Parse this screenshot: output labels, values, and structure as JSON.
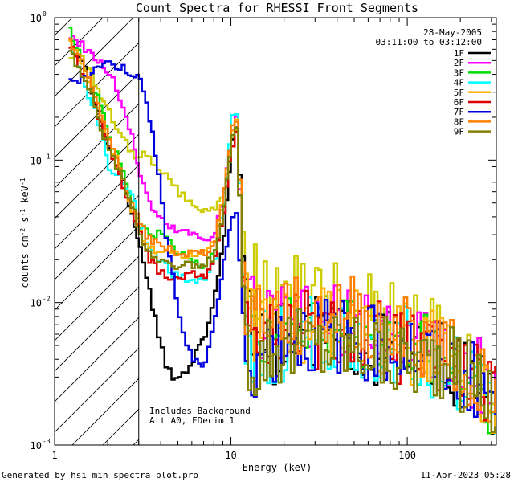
{
  "chart_data": {
    "type": "line",
    "title": "Count Spectra for RHESSI Front Segments",
    "xlabel": "Energy (keV)",
    "ylabel_parts": [
      "counts cm",
      "-2",
      " s",
      "-1",
      " keV",
      "-1"
    ],
    "x_scale": "log",
    "y_scale": "log",
    "xlim": [
      1,
      320
    ],
    "ylim": [
      0.001,
      1
    ],
    "x_ticks": [
      {
        "value": 1,
        "label": "1"
      },
      {
        "value": 10,
        "label": "10"
      },
      {
        "value": 100,
        "label": "100"
      }
    ],
    "y_ticks": [
      {
        "exp": 0,
        "label": "10",
        "sup": "0"
      },
      {
        "exp": -1,
        "label": "10",
        "sup": "-1"
      },
      {
        "exp": -2,
        "label": "10",
        "sup": "-2"
      },
      {
        "exp": -3,
        "label": "10",
        "sup": "-3"
      }
    ],
    "header_date": "28-May-2005",
    "header_time": "03:11:00 to 03:12:00",
    "annotation_lines": [
      "Includes Background",
      "Att A0, FDecim 1"
    ],
    "excluded_region_max_keV": 3,
    "series": [
      {
        "name": "1F",
        "color": "#000000",
        "x": [
          1.2,
          1.4,
          1.6,
          1.8,
          2.0,
          2.2,
          2.4,
          2.6,
          2.8,
          3.0,
          3.4,
          3.8,
          4.2,
          4.6,
          5.0,
          6.0,
          7.0,
          8.0,
          9.0,
          10.0,
          10.5,
          11.0,
          11.5,
          12.0,
          13,
          14,
          16,
          18,
          20,
          25,
          30,
          40,
          50,
          60,
          80,
          100,
          130,
          160,
          200,
          250,
          300
        ],
        "y": [
          0.7,
          0.5,
          0.3,
          0.18,
          0.12,
          0.09,
          0.07,
          0.05,
          0.035,
          0.025,
          0.012,
          0.006,
          0.0035,
          0.003,
          0.003,
          0.004,
          0.006,
          0.012,
          0.03,
          0.13,
          0.18,
          0.08,
          0.02,
          0.008,
          0.005,
          0.004,
          0.005,
          0.005,
          0.006,
          0.006,
          0.006,
          0.006,
          0.006,
          0.005,
          0.005,
          0.005,
          0.004,
          0.004,
          0.003,
          0.003,
          0.002
        ]
      },
      {
        "name": "2F",
        "color": "#ff00ff",
        "x": [
          1.2,
          1.4,
          1.6,
          1.8,
          2.0,
          2.2,
          2.4,
          2.6,
          2.8,
          3.0,
          3.4,
          3.8,
          4.2,
          4.6,
          5.0,
          6.0,
          7.0,
          8.0,
          9.0,
          10.0,
          10.5,
          11.0,
          11.5,
          12.0,
          13,
          14,
          16,
          18,
          20,
          25,
          30,
          40,
          50,
          60,
          80,
          100,
          130,
          160,
          200,
          250,
          300
        ],
        "y": [
          0.75,
          0.65,
          0.55,
          0.48,
          0.4,
          0.32,
          0.24,
          0.17,
          0.12,
          0.08,
          0.05,
          0.04,
          0.035,
          0.033,
          0.032,
          0.03,
          0.028,
          0.032,
          0.06,
          0.17,
          0.2,
          0.06,
          0.015,
          0.01,
          0.008,
          0.007,
          0.007,
          0.007,
          0.007,
          0.007,
          0.007,
          0.007,
          0.006,
          0.006,
          0.006,
          0.005,
          0.005,
          0.004,
          0.0035,
          0.003,
          0.002
        ]
      },
      {
        "name": "3F",
        "color": "#00dd00",
        "x": [
          1.2,
          1.4,
          1.6,
          1.8,
          2.0,
          2.2,
          2.4,
          2.6,
          2.8,
          3.0,
          3.4,
          3.8,
          4.2,
          4.6,
          5.0,
          6.0,
          7.0,
          8.0,
          9.0,
          10.0,
          10.5,
          11.0,
          11.5,
          12.0,
          13,
          14,
          16,
          18,
          20,
          25,
          30,
          40,
          50,
          60,
          80,
          100,
          130,
          160,
          200,
          250,
          300
        ],
        "y": [
          0.8,
          0.5,
          0.35,
          0.25,
          0.15,
          0.11,
          0.08,
          0.06,
          0.045,
          0.035,
          0.03,
          0.03,
          0.028,
          0.025,
          0.022,
          0.02,
          0.018,
          0.022,
          0.05,
          0.15,
          0.18,
          0.06,
          0.015,
          0.009,
          0.007,
          0.006,
          0.006,
          0.007,
          0.007,
          0.007,
          0.007,
          0.006,
          0.006,
          0.006,
          0.005,
          0.005,
          0.005,
          0.004,
          0.0035,
          0.003,
          0.002
        ]
      },
      {
        "name": "4F",
        "color": "#00ffff",
        "x": [
          1.2,
          1.4,
          1.6,
          1.8,
          2.0,
          2.2,
          2.4,
          2.6,
          2.8,
          3.0,
          3.4,
          3.8,
          4.2,
          4.6,
          5.0,
          6.0,
          7.0,
          8.0,
          9.0,
          10.0,
          10.5,
          11.0,
          11.5,
          12.0,
          13,
          14,
          16,
          18,
          20,
          25,
          30,
          40,
          50,
          60,
          80,
          100,
          130,
          160,
          200,
          250,
          300
        ],
        "y": [
          0.6,
          0.4,
          0.25,
          0.16,
          0.09,
          0.08,
          0.07,
          0.06,
          0.05,
          0.035,
          0.025,
          0.02,
          0.018,
          0.016,
          0.015,
          0.014,
          0.014,
          0.02,
          0.05,
          0.2,
          0.21,
          0.07,
          0.015,
          0.006,
          0.004,
          0.004,
          0.005,
          0.005,
          0.005,
          0.006,
          0.006,
          0.006,
          0.005,
          0.005,
          0.005,
          0.005,
          0.004,
          0.004,
          0.003,
          0.003,
          0.002
        ]
      },
      {
        "name": "5F",
        "color": "#ffb000",
        "x": [
          1.2,
          1.4,
          1.6,
          1.8,
          2.0,
          2.2,
          2.4,
          2.6,
          2.8,
          3.0,
          3.4,
          3.8,
          4.2,
          4.6,
          5.0,
          6.0,
          7.0,
          8.0,
          9.0,
          10.0,
          10.5,
          11.0,
          11.5,
          12.0,
          13,
          14,
          16,
          18,
          20,
          25,
          30,
          40,
          50,
          60,
          80,
          100,
          130,
          160,
          200,
          250,
          300
        ],
        "y": [
          0.7,
          0.45,
          0.3,
          0.2,
          0.13,
          0.1,
          0.07,
          0.05,
          0.04,
          0.03,
          0.025,
          0.022,
          0.022,
          0.022,
          0.022,
          0.022,
          0.022,
          0.028,
          0.06,
          0.15,
          0.18,
          0.07,
          0.02,
          0.01,
          0.008,
          0.007,
          0.007,
          0.007,
          0.007,
          0.007,
          0.007,
          0.007,
          0.007,
          0.006,
          0.006,
          0.005,
          0.005,
          0.004,
          0.0035,
          0.003,
          0.002
        ]
      },
      {
        "name": "6F",
        "color": "#dd0000",
        "x": [
          1.2,
          1.4,
          1.6,
          1.8,
          2.0,
          2.2,
          2.4,
          2.6,
          2.8,
          3.0,
          3.4,
          3.8,
          4.2,
          4.6,
          5.0,
          6.0,
          7.0,
          8.0,
          9.0,
          10.0,
          10.5,
          11.0,
          11.5,
          12.0,
          13,
          14,
          16,
          18,
          20,
          25,
          30,
          40,
          50,
          60,
          80,
          100,
          130,
          160,
          200,
          250,
          300
        ],
        "y": [
          0.65,
          0.42,
          0.28,
          0.18,
          0.12,
          0.09,
          0.065,
          0.05,
          0.04,
          0.03,
          0.02,
          0.017,
          0.016,
          0.015,
          0.015,
          0.016,
          0.016,
          0.02,
          0.045,
          0.13,
          0.16,
          0.06,
          0.015,
          0.009,
          0.007,
          0.006,
          0.006,
          0.006,
          0.006,
          0.007,
          0.006,
          0.006,
          0.006,
          0.006,
          0.005,
          0.005,
          0.004,
          0.004,
          0.0035,
          0.003,
          0.002
        ]
      },
      {
        "name": "7F",
        "color": "#0000dd",
        "x": [
          1.2,
          1.4,
          1.6,
          1.8,
          2.0,
          2.2,
          2.4,
          2.6,
          2.8,
          3.0,
          3.4,
          3.8,
          4.2,
          4.6,
          5.0,
          5.5,
          6.0,
          6.5,
          7.0,
          8.0,
          9.0,
          10.0,
          10.5,
          11.0,
          11.5,
          12.0,
          13,
          14,
          16,
          18,
          20,
          25,
          30,
          40,
          50,
          60,
          80,
          100,
          130,
          160,
          200,
          250,
          300
        ],
        "y": [
          0.35,
          0.38,
          0.42,
          0.47,
          0.48,
          0.46,
          0.44,
          0.42,
          0.4,
          0.36,
          0.2,
          0.08,
          0.03,
          0.015,
          0.008,
          0.005,
          0.004,
          0.0035,
          0.004,
          0.008,
          0.02,
          0.04,
          0.04,
          0.02,
          0.008,
          0.005,
          0.004,
          0.004,
          0.005,
          0.005,
          0.006,
          0.006,
          0.006,
          0.006,
          0.006,
          0.005,
          0.005,
          0.005,
          0.004,
          0.004,
          0.003,
          0.003,
          0.002
        ]
      },
      {
        "name": "8F",
        "color": "#ff8000",
        "x": [
          1.2,
          1.4,
          1.6,
          1.8,
          2.0,
          2.2,
          2.4,
          2.6,
          2.8,
          3.0,
          3.4,
          3.8,
          4.2,
          4.6,
          5.0,
          6.0,
          7.0,
          8.0,
          9.0,
          10.0,
          10.5,
          11.0,
          11.5,
          12.0,
          13,
          14,
          16,
          18,
          20,
          25,
          30,
          40,
          50,
          60,
          80,
          100,
          130,
          160,
          200,
          250,
          300
        ],
        "y": [
          0.7,
          0.48,
          0.32,
          0.2,
          0.14,
          0.1,
          0.075,
          0.055,
          0.045,
          0.035,
          0.028,
          0.025,
          0.024,
          0.023,
          0.022,
          0.022,
          0.022,
          0.028,
          0.06,
          0.17,
          0.19,
          0.07,
          0.02,
          0.011,
          0.009,
          0.008,
          0.008,
          0.008,
          0.008,
          0.008,
          0.008,
          0.008,
          0.008,
          0.007,
          0.006,
          0.006,
          0.005,
          0.005,
          0.004,
          0.003,
          0.002
        ]
      },
      {
        "name": "9F",
        "color": "#808000",
        "x": [
          1.2,
          1.4,
          1.6,
          1.8,
          2.0,
          2.2,
          2.4,
          2.6,
          2.8,
          3.0,
          3.4,
          3.8,
          4.2,
          4.6,
          5.0,
          6.0,
          7.0,
          8.0,
          9.0,
          10.0,
          10.5,
          11.0,
          11.5,
          12.0,
          13,
          14,
          16,
          18,
          20,
          25,
          30,
          40,
          50,
          60,
          80,
          100,
          130,
          160,
          200,
          250,
          300
        ],
        "y": [
          0.6,
          0.4,
          0.28,
          0.17,
          0.12,
          0.09,
          0.07,
          0.055,
          0.045,
          0.03,
          0.022,
          0.02,
          0.02,
          0.019,
          0.018,
          0.018,
          0.018,
          0.022,
          0.05,
          0.14,
          0.16,
          0.06,
          0.013,
          0.005,
          0.004,
          0.004,
          0.005,
          0.005,
          0.005,
          0.005,
          0.005,
          0.005,
          0.005,
          0.005,
          0.004,
          0.004,
          0.004,
          0.004,
          0.003,
          0.003,
          0.002
        ]
      }
    ],
    "overlay_series": [
      {
        "name": "yellow-green",
        "color": "#cccc00",
        "x": [
          1.2,
          1.4,
          1.6,
          1.8,
          2.0,
          2.2,
          2.4,
          2.6,
          2.8,
          3.0,
          3.4,
          3.8,
          4.2,
          4.6,
          5.0,
          6.0,
          7.0,
          8.0,
          9.0,
          10.0,
          10.5,
          11.0,
          11.5,
          12.0,
          13,
          14,
          16,
          18,
          20,
          25,
          30,
          40,
          50,
          60,
          80,
          100,
          130,
          160,
          200,
          250,
          300
        ],
        "y": [
          0.55,
          0.5,
          0.38,
          0.28,
          0.22,
          0.17,
          0.14,
          0.12,
          0.11,
          0.11,
          0.1,
          0.09,
          0.08,
          0.07,
          0.06,
          0.05,
          0.045,
          0.045,
          0.06,
          0.14,
          0.17,
          0.08,
          0.03,
          0.018,
          0.015,
          0.014,
          0.013,
          0.012,
          0.012,
          0.011,
          0.01,
          0.01,
          0.009,
          0.009,
          0.008,
          0.007,
          0.006,
          0.005,
          0.004,
          0.003,
          0.002
        ]
      }
    ]
  },
  "footer": {
    "generated_by": "Generated by hsi_min_spectra_plot.pro",
    "timestamp": "11-Apr-2023 05:28"
  }
}
